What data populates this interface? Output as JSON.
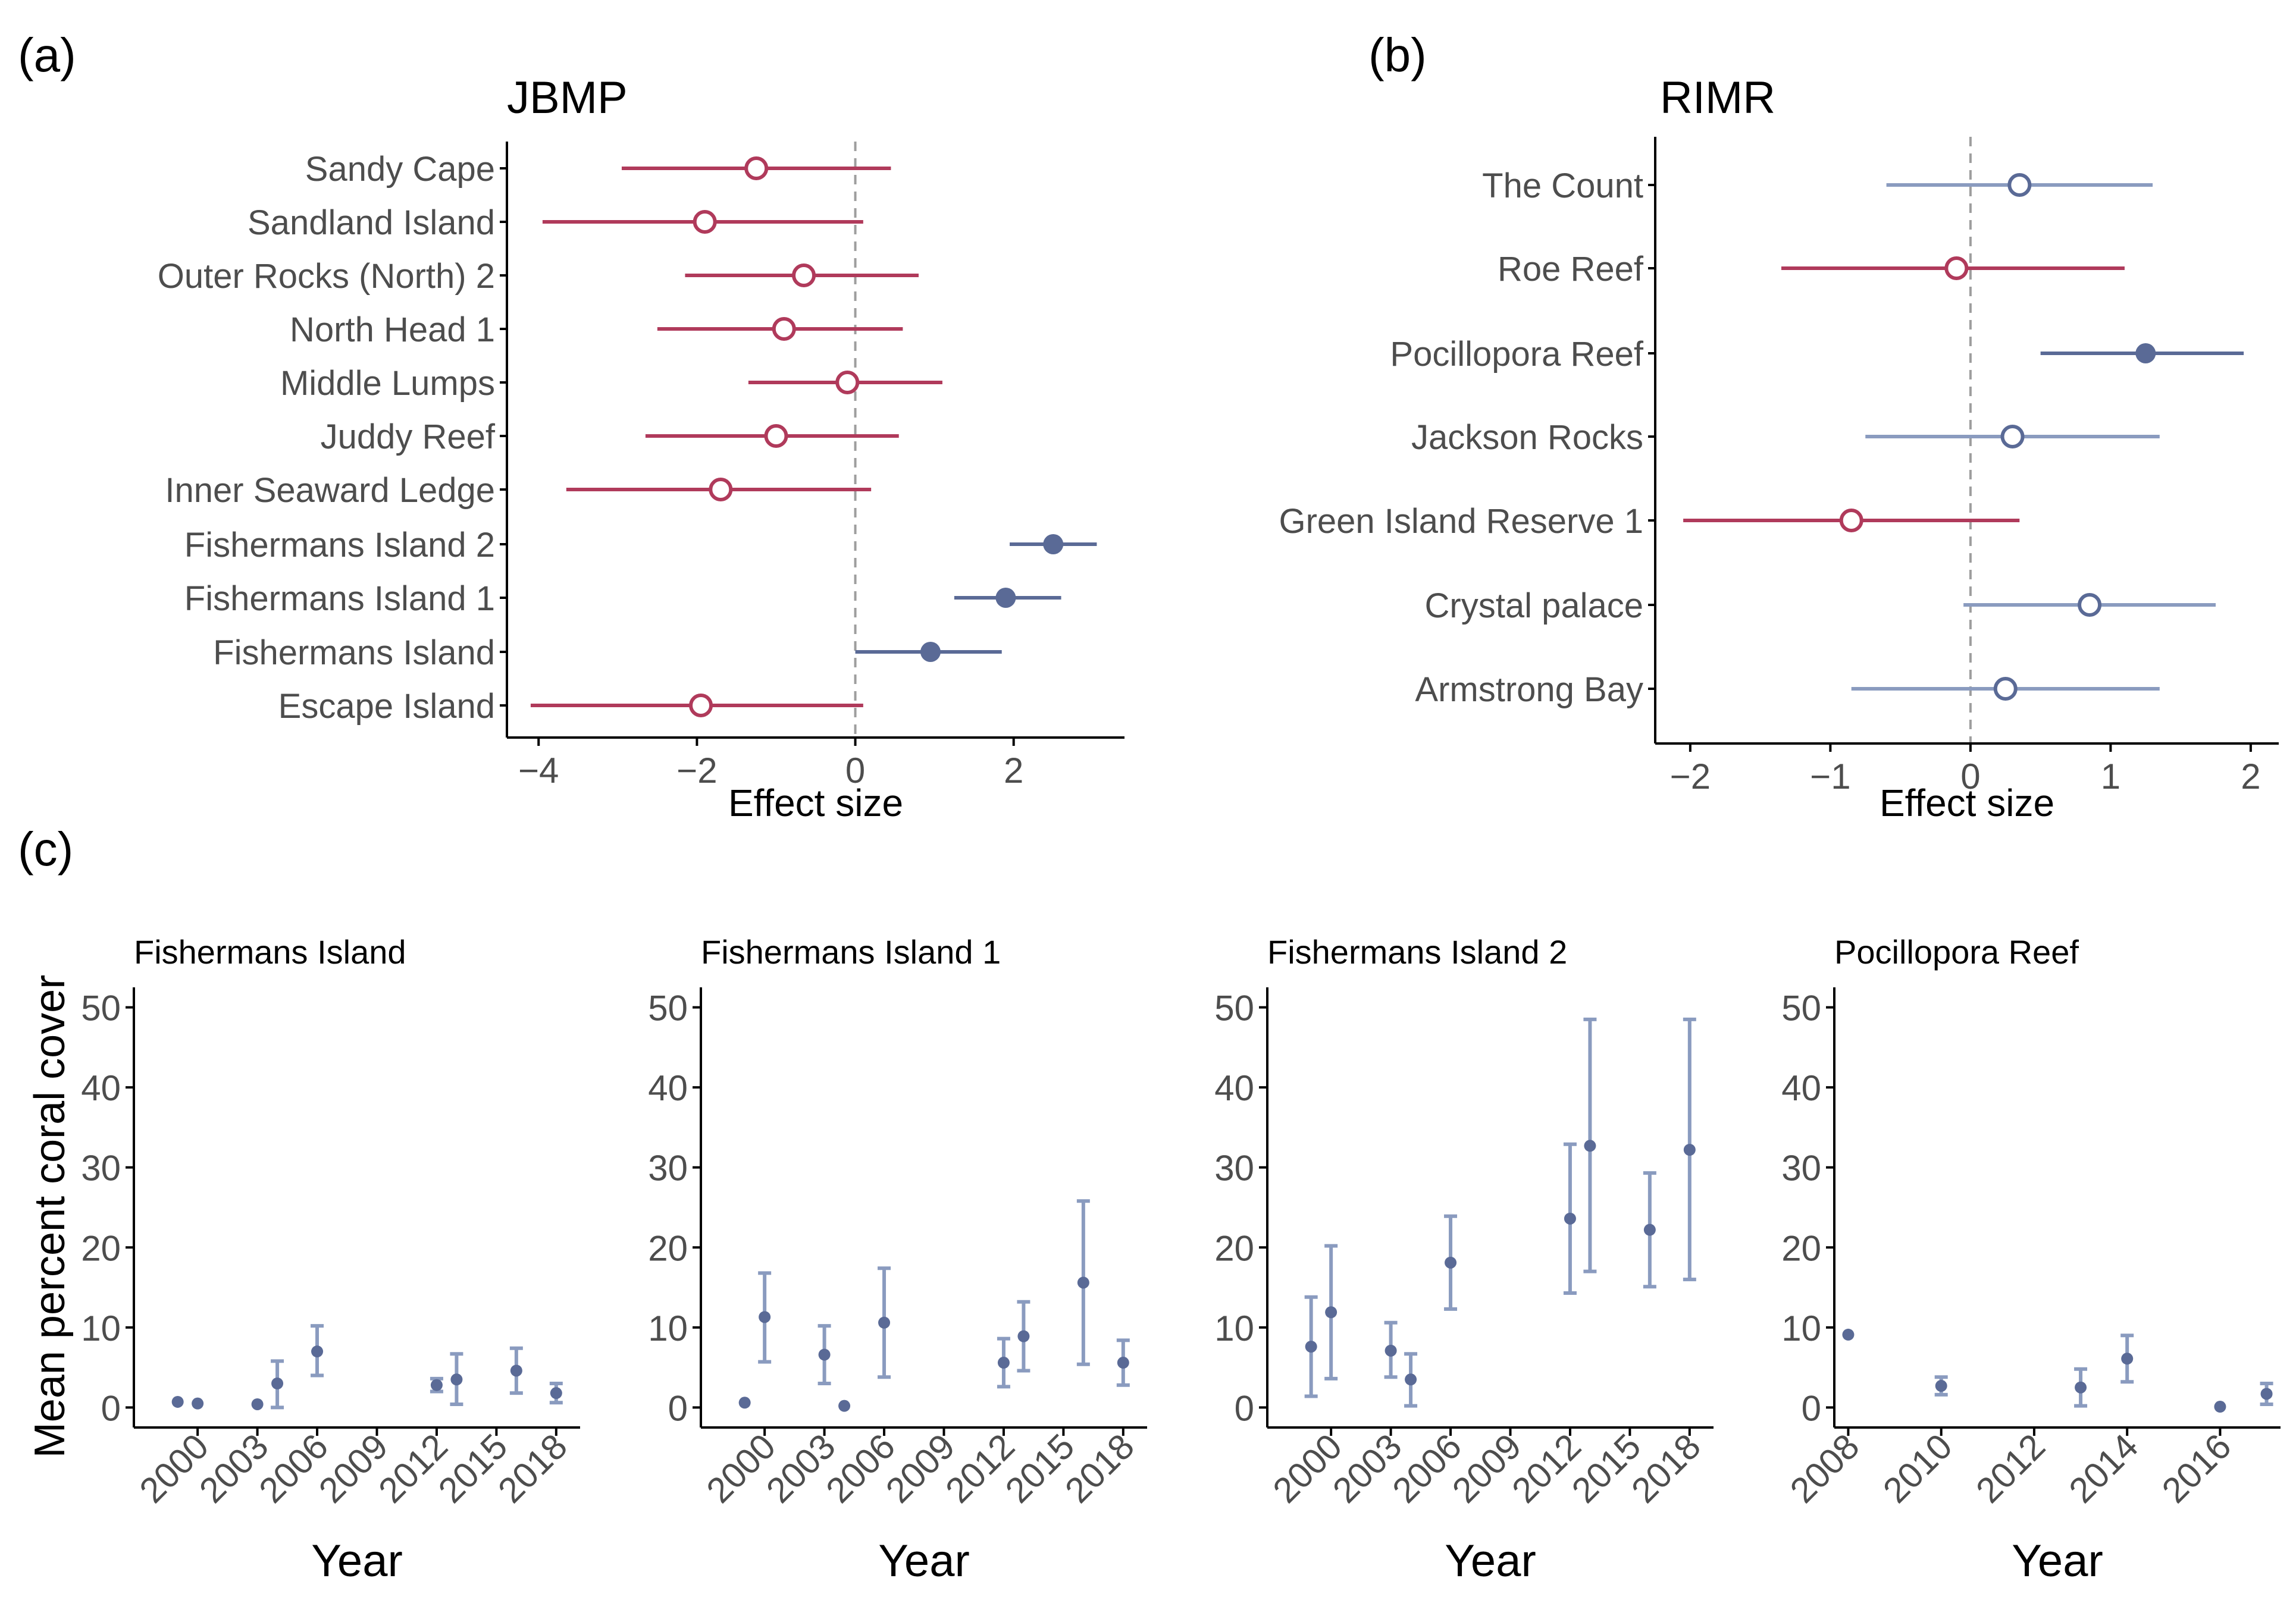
{
  "figure": {
    "panel_labels": [
      "(a)",
      "(b)",
      "(c)"
    ],
    "ylabel_c": "Mean percent coral cover"
  },
  "colors": {
    "negative": "#b03a5b",
    "positive": "#5a6a96",
    "positive_light": "#8a9bbf",
    "axis": "#000000",
    "tick_text": "#4d4d4d",
    "zero_line": "#9e9e9e"
  },
  "chart_data": [
    {
      "id": "a",
      "type": "scatter",
      "title": "JBMP",
      "xlabel": "Effect size",
      "xlim": [
        -4.4,
        3.4
      ],
      "xticks": [
        -4,
        -2,
        0,
        2
      ],
      "xtick_labels": [
        "−4",
        "−2",
        "0",
        "2"
      ],
      "points": [
        {
          "label": "Sandy Cape",
          "est": -1.25,
          "lo": -2.95,
          "hi": 0.45,
          "sign": "negative",
          "sig": false
        },
        {
          "label": "Sandland Island",
          "est": -1.9,
          "lo": -3.95,
          "hi": 0.1,
          "sign": "negative",
          "sig": false
        },
        {
          "label": "Outer Rocks (North) 2",
          "est": -0.65,
          "lo": -2.15,
          "hi": 0.8,
          "sign": "negative",
          "sig": false
        },
        {
          "label": "North Head 1",
          "est": -0.9,
          "lo": -2.5,
          "hi": 0.6,
          "sign": "negative",
          "sig": false
        },
        {
          "label": "Middle Lumps",
          "est": -0.1,
          "lo": -1.35,
          "hi": 1.1,
          "sign": "negative",
          "sig": false
        },
        {
          "label": "Juddy Reef",
          "est": -1.0,
          "lo": -2.65,
          "hi": 0.55,
          "sign": "negative",
          "sig": false
        },
        {
          "label": "Inner Seaward Ledge",
          "est": -1.7,
          "lo": -3.65,
          "hi": 0.2,
          "sign": "negative",
          "sig": false
        },
        {
          "label": "Fishermans Island 2",
          "est": 2.5,
          "lo": 1.95,
          "hi": 3.05,
          "sign": "positive",
          "sig": true
        },
        {
          "label": "Fishermans Island 1",
          "est": 1.9,
          "lo": 1.25,
          "hi": 2.6,
          "sign": "positive",
          "sig": true
        },
        {
          "label": "Fishermans Island",
          "est": 0.95,
          "lo": 0.0,
          "hi": 1.85,
          "sign": "positive",
          "sig": true
        },
        {
          "label": "Escape Island",
          "est": -1.95,
          "lo": -4.1,
          "hi": 0.1,
          "sign": "negative",
          "sig": false
        }
      ]
    },
    {
      "id": "b",
      "type": "scatter",
      "title": "RIMR",
      "xlabel": "Effect size",
      "xlim": [
        -2.25,
        2.2
      ],
      "xticks": [
        -2,
        -1,
        0,
        1,
        2
      ],
      "xtick_labels": [
        "−2",
        "−1",
        "0",
        "1",
        "2"
      ],
      "points": [
        {
          "label": "The Count",
          "est": 0.35,
          "lo": -0.6,
          "hi": 1.3,
          "sign": "positive",
          "sig": false
        },
        {
          "label": "Roe Reef",
          "est": -0.1,
          "lo": -1.35,
          "hi": 1.1,
          "sign": "negative",
          "sig": false
        },
        {
          "label": "Pocillopora Reef",
          "est": 1.25,
          "lo": 0.5,
          "hi": 1.95,
          "sign": "positive",
          "sig": true
        },
        {
          "label": "Jackson Rocks",
          "est": 0.3,
          "lo": -0.75,
          "hi": 1.35,
          "sign": "positive",
          "sig": false
        },
        {
          "label": "Green Island Reserve 1",
          "est": -0.85,
          "lo": -2.05,
          "hi": 0.35,
          "sign": "negative",
          "sig": false
        },
        {
          "label": "Crystal palace",
          "est": 0.85,
          "lo": -0.05,
          "hi": 1.75,
          "sign": "positive",
          "sig": false
        },
        {
          "label": "Armstrong Bay",
          "est": 0.25,
          "lo": -0.85,
          "hi": 1.35,
          "sign": "positive",
          "sig": false
        }
      ]
    },
    {
      "id": "c1",
      "type": "scatter",
      "title": "Fishermans Island",
      "xlabel": "Year",
      "ylabel": "Mean percent coral cover",
      "xlim": [
        1996.8,
        2019.2
      ],
      "ylim": [
        -2.5,
        52.5
      ],
      "xticks": [
        2000,
        2003,
        2006,
        2009,
        2012,
        2015,
        2018
      ],
      "yticks": [
        0,
        10,
        20,
        30,
        40,
        50
      ],
      "points": [
        {
          "x": 1999,
          "y": 0.7,
          "lo": 0.7,
          "hi": 0.7
        },
        {
          "x": 2000,
          "y": 0.5,
          "lo": 0.5,
          "hi": 0.5
        },
        {
          "x": 2003,
          "y": 0.4,
          "lo": 0.4,
          "hi": 0.4
        },
        {
          "x": 2004,
          "y": 3.0,
          "lo": 0.0,
          "hi": 5.8
        },
        {
          "x": 2006,
          "y": 7.0,
          "lo": 4.0,
          "hi": 10.2
        },
        {
          "x": 2012,
          "y": 2.8,
          "lo": 2.0,
          "hi": 3.6
        },
        {
          "x": 2013,
          "y": 3.5,
          "lo": 0.4,
          "hi": 6.7
        },
        {
          "x": 2016,
          "y": 4.6,
          "lo": 1.8,
          "hi": 7.4
        },
        {
          "x": 2018,
          "y": 1.8,
          "lo": 0.6,
          "hi": 3.0
        }
      ]
    },
    {
      "id": "c2",
      "type": "scatter",
      "title": "Fishermans Island 1",
      "xlabel": "Year",
      "xlim": [
        1996.8,
        2019.2
      ],
      "ylim": [
        -2.5,
        52.5
      ],
      "xticks": [
        2000,
        2003,
        2006,
        2009,
        2012,
        2015,
        2018
      ],
      "yticks": [
        0,
        10,
        20,
        30,
        40,
        50
      ],
      "points": [
        {
          "x": 1999,
          "y": 0.6,
          "lo": 0.6,
          "hi": 0.6
        },
        {
          "x": 2000,
          "y": 11.3,
          "lo": 5.7,
          "hi": 16.8
        },
        {
          "x": 2003,
          "y": 6.6,
          "lo": 3.0,
          "hi": 10.2
        },
        {
          "x": 2004,
          "y": 0.2,
          "lo": 0.2,
          "hi": 0.2
        },
        {
          "x": 2006,
          "y": 10.6,
          "lo": 3.8,
          "hi": 17.4
        },
        {
          "x": 2012,
          "y": 5.6,
          "lo": 2.6,
          "hi": 8.6
        },
        {
          "x": 2013,
          "y": 8.9,
          "lo": 4.6,
          "hi": 13.2
        },
        {
          "x": 2016,
          "y": 15.6,
          "lo": 5.4,
          "hi": 25.8
        },
        {
          "x": 2018,
          "y": 5.6,
          "lo": 2.8,
          "hi": 8.4
        }
      ]
    },
    {
      "id": "c3",
      "type": "scatter",
      "title": "Fishermans Island 2",
      "xlabel": "Year",
      "xlim": [
        1996.8,
        2019.2
      ],
      "ylim": [
        -2.5,
        52.5
      ],
      "xticks": [
        2000,
        2003,
        2006,
        2009,
        2012,
        2015,
        2018
      ],
      "yticks": [
        0,
        10,
        20,
        30,
        40,
        50
      ],
      "points": [
        {
          "x": 1999,
          "y": 7.6,
          "lo": 1.4,
          "hi": 13.8
        },
        {
          "x": 2000,
          "y": 11.9,
          "lo": 3.6,
          "hi": 20.2
        },
        {
          "x": 2003,
          "y": 7.1,
          "lo": 3.8,
          "hi": 10.6
        },
        {
          "x": 2004,
          "y": 3.5,
          "lo": 0.2,
          "hi": 6.7
        },
        {
          "x": 2006,
          "y": 18.1,
          "lo": 12.3,
          "hi": 23.9
        },
        {
          "x": 2012,
          "y": 23.6,
          "lo": 14.3,
          "hi": 32.9
        },
        {
          "x": 2013,
          "y": 32.7,
          "lo": 17.0,
          "hi": 48.5
        },
        {
          "x": 2016,
          "y": 22.2,
          "lo": 15.1,
          "hi": 29.3
        },
        {
          "x": 2018,
          "y": 32.2,
          "lo": 16.0,
          "hi": 48.5
        }
      ]
    },
    {
      "id": "c4",
      "type": "scatter",
      "title": "Pocillopora Reef",
      "xlabel": "Year",
      "xlim": [
        2007.7,
        2017.3
      ],
      "ylim": [
        -2.5,
        52.5
      ],
      "xticks": [
        2008,
        2010,
        2012,
        2014,
        2016
      ],
      "yticks": [
        0,
        10,
        20,
        30,
        40,
        50
      ],
      "points": [
        {
          "x": 2008,
          "y": 9.1,
          "lo": 9.1,
          "hi": 9.1
        },
        {
          "x": 2010,
          "y": 2.7,
          "lo": 1.6,
          "hi": 3.8
        },
        {
          "x": 2013,
          "y": 2.5,
          "lo": 0.2,
          "hi": 4.8
        },
        {
          "x": 2014,
          "y": 6.1,
          "lo": 3.2,
          "hi": 9.0
        },
        {
          "x": 2016,
          "y": 0.1,
          "lo": 0.1,
          "hi": 0.1
        },
        {
          "x": 2017,
          "y": 1.7,
          "lo": 0.4,
          "hi": 3.0
        }
      ]
    }
  ]
}
